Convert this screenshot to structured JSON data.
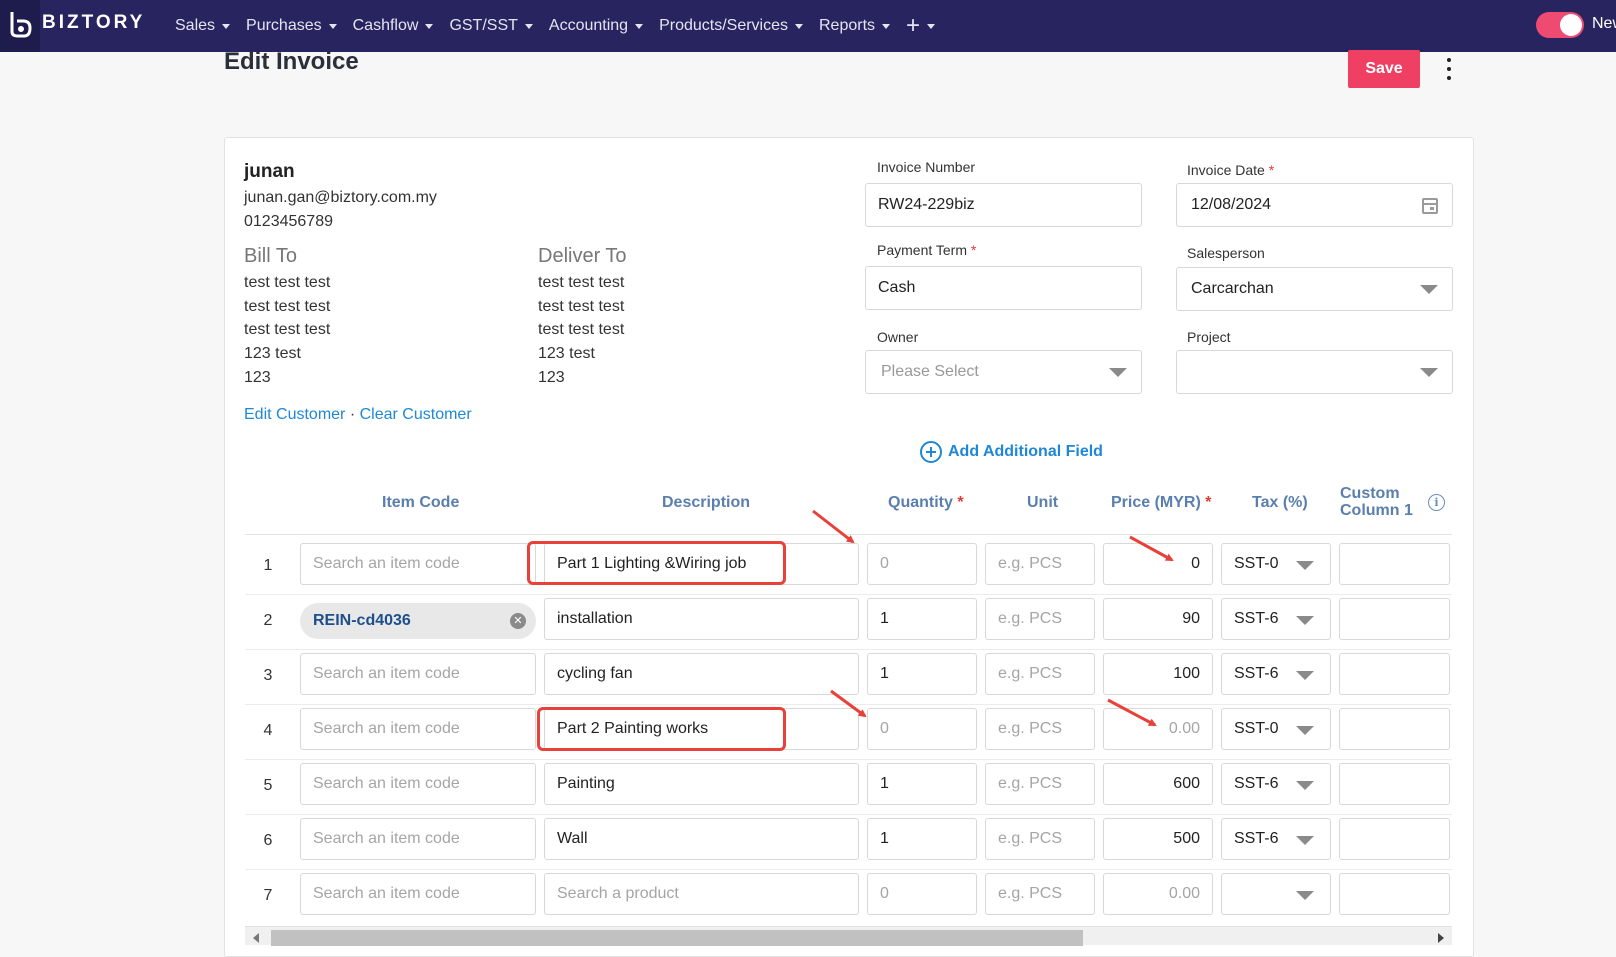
{
  "app": {
    "brand": "BIZTORY",
    "nav": [
      "Sales",
      "Purchases",
      "Cashflow",
      "GST/SST",
      "Accounting",
      "Products/Services",
      "Reports"
    ],
    "new_label": "New",
    "toggle_on": true
  },
  "page": {
    "title": "Edit Invoice",
    "save_label": "Save"
  },
  "customer": {
    "name": "junan",
    "email": "junan.gan@biztory.com.my",
    "phone": "0123456789",
    "bill_to_heading": "Bill To",
    "bill_to": [
      "test test test",
      "test test test",
      "test test test",
      "123 test",
      "123"
    ],
    "deliver_to_heading": "Deliver To",
    "deliver_to": [
      "test test test",
      "test test test",
      "test test test",
      "123 test",
      "123"
    ],
    "edit_link": "Edit Customer",
    "separator": "·",
    "clear_link": "Clear Customer"
  },
  "form": {
    "invoice_number_label": "Invoice Number",
    "invoice_number": "RW24-229biz",
    "invoice_date_label": "Invoice Date",
    "invoice_date": "12/08/2024",
    "payment_term_label": "Payment Term",
    "payment_term": "Cash",
    "salesperson_label": "Salesperson",
    "salesperson": "Carcarchan",
    "owner_label": "Owner",
    "owner_placeholder": "Please Select",
    "project_label": "Project",
    "project": "",
    "required_mark": "*",
    "add_field_label": "Add Additional Field"
  },
  "table": {
    "headers": {
      "item_code": "Item Code",
      "description": "Description",
      "quantity": "Quantity",
      "unit": "Unit",
      "price": "Price (MYR)",
      "tax": "Tax (%)",
      "custom1_line1": "Custom",
      "custom1_line2": "Column 1"
    },
    "item_code_placeholder": "Search an item code",
    "unit_placeholder": "e.g. PCS",
    "rows": [
      {
        "num": "1",
        "item_code": "",
        "description": "Part 1 Lighting &Wiring job",
        "quantity": "0",
        "price": "0",
        "tax": "SST-0"
      },
      {
        "num": "2",
        "item_code": "REIN-cd4036",
        "description": "installation",
        "quantity": "1",
        "price": "90",
        "tax": "SST-6"
      },
      {
        "num": "3",
        "item_code": "",
        "description": "cycling fan",
        "quantity": "1",
        "price": "100",
        "tax": "SST-6"
      },
      {
        "num": "4",
        "item_code": "",
        "description": "Part 2 Painting works",
        "quantity": "0",
        "price": "0.00",
        "tax": "SST-0"
      },
      {
        "num": "5",
        "item_code": "",
        "description": "Painting",
        "quantity": "1",
        "price": "600",
        "tax": "SST-6"
      },
      {
        "num": "6",
        "item_code": "",
        "description": "Wall",
        "quantity": "1",
        "price": "500",
        "tax": "SST-6"
      },
      {
        "num": "7",
        "item_code": "",
        "description": "Search a product",
        "quantity": "0",
        "price": "0.00",
        "tax": ""
      }
    ]
  },
  "colors": {
    "nav_bg": "#27245f",
    "accent": "#ef3f63",
    "link": "#1e88d6",
    "annotation": "#e8413a"
  }
}
